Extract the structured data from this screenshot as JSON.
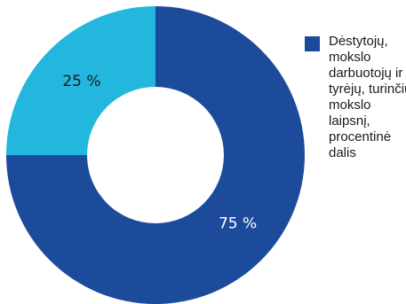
{
  "chart_data": {
    "type": "pie",
    "donut": true,
    "title": "",
    "categories": [
      "Dėstytojų, mokslo darbuotojų ir tyrėjų, turinčių mokslo laipsnį, procentinė dalis",
      ""
    ],
    "values": [
      75,
      25
    ],
    "value_labels": [
      "75 %",
      "25 %"
    ],
    "colors": [
      "#1c4b9c",
      "#24b7dd"
    ],
    "label_colors": [
      "#ffffff",
      "#1a1a1a"
    ],
    "legend": {
      "placement": "right",
      "entries": [
        {
          "label": "Dėstytojų, mokslo darbuotojų ir tyrėjų, turinčių mokslo laipsnį, procentinė dalis",
          "color": "#1c4b9c"
        }
      ]
    }
  }
}
